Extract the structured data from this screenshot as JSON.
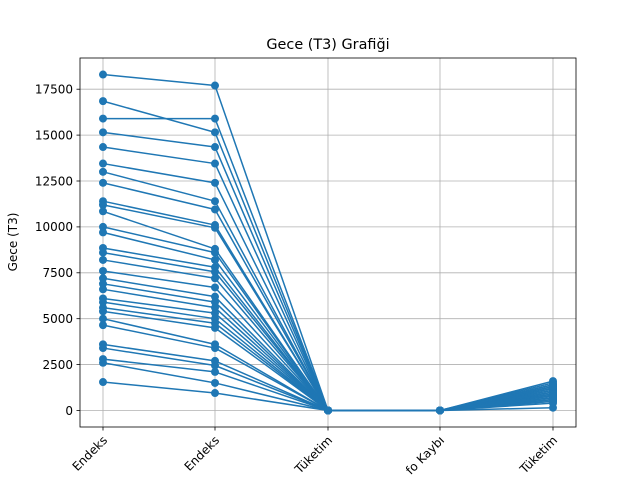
{
  "chart_data": {
    "type": "line",
    "title": "Gece (T3) Grafiği",
    "xlabel": "",
    "ylabel": "Gece (T3)",
    "categories": [
      "Endeks",
      "Endeks",
      "Tüketim",
      "fo Kaybı",
      "Tüketim"
    ],
    "ylim": [
      -900,
      19200
    ],
    "yticks": [
      0,
      2500,
      5000,
      7500,
      10000,
      12500,
      15000,
      17500
    ],
    "ytick_labels": [
      "0",
      "2500",
      "5000",
      "7500",
      "10000",
      "12500",
      "15000",
      "17500"
    ],
    "grid": true,
    "marker": "circle",
    "color": "#1f77b4",
    "series": [
      {
        "values": [
          18300,
          17700,
          0,
          0,
          1500
        ]
      },
      {
        "values": [
          16850,
          15150,
          0,
          0,
          1300
        ]
      },
      {
        "values": [
          15900,
          15900,
          0,
          0,
          1400
        ]
      },
      {
        "values": [
          15150,
          14350,
          0,
          0,
          1200
        ]
      },
      {
        "values": [
          14350,
          13450,
          0,
          0,
          1100
        ]
      },
      {
        "values": [
          13450,
          12400,
          0,
          0,
          1000
        ]
      },
      {
        "values": [
          13000,
          11400,
          0,
          0,
          1600
        ]
      },
      {
        "values": [
          12400,
          10950,
          0,
          0,
          900
        ]
      },
      {
        "values": [
          11400,
          10100,
          0,
          0,
          1300
        ]
      },
      {
        "values": [
          11200,
          9950,
          0,
          0,
          800
        ]
      },
      {
        "values": [
          10850,
          8800,
          0,
          0,
          1200
        ]
      },
      {
        "values": [
          10000,
          8600,
          0,
          0,
          700
        ]
      },
      {
        "values": [
          9700,
          8200,
          0,
          0,
          1100
        ]
      },
      {
        "values": [
          8850,
          7800,
          0,
          0,
          1000
        ]
      },
      {
        "values": [
          8600,
          7550,
          0,
          0,
          600
        ]
      },
      {
        "values": [
          8200,
          7200,
          0,
          0,
          900
        ]
      },
      {
        "values": [
          7600,
          6700,
          0,
          0,
          1400
        ]
      },
      {
        "values": [
          7200,
          6200,
          0,
          0,
          800
        ]
      },
      {
        "values": [
          6900,
          5900,
          0,
          0,
          1200
        ]
      },
      {
        "values": [
          6600,
          5600,
          0,
          0,
          500
        ]
      },
      {
        "values": [
          6100,
          5300,
          0,
          0,
          700
        ]
      },
      {
        "values": [
          5900,
          5000,
          0,
          0,
          1000
        ]
      },
      {
        "values": [
          5600,
          4750,
          0,
          0,
          600
        ]
      },
      {
        "values": [
          5400,
          4500,
          0,
          0,
          900
        ]
      },
      {
        "values": [
          5000,
          3600,
          0,
          0,
          1300
        ]
      },
      {
        "values": [
          4650,
          3400,
          0,
          0,
          400
        ]
      },
      {
        "values": [
          3600,
          2700,
          0,
          0,
          800
        ]
      },
      {
        "values": [
          3400,
          2450,
          0,
          0,
          600
        ]
      },
      {
        "values": [
          2800,
          2100,
          0,
          0,
          700
        ]
      },
      {
        "values": [
          2600,
          1500,
          0,
          0,
          500
        ]
      },
      {
        "values": [
          1550,
          950,
          0,
          0,
          150
        ]
      }
    ]
  }
}
